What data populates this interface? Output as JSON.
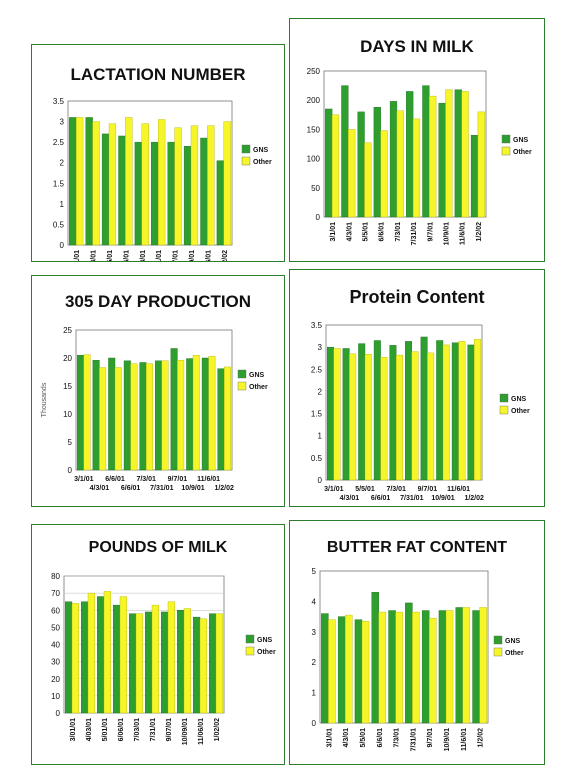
{
  "colors": {
    "gns": "#2e9e2e",
    "other": "#f5f52a",
    "gns_dark": "#1e6e1e",
    "frame": "#2e7d2e"
  },
  "chart_data": [
    {
      "id": "lactation",
      "type": "bar",
      "title": "LACTATION NUMBER",
      "categories": [
        "3/01/01",
        "4/03/01",
        "5/05/01",
        "6/06/01",
        "7/03/01",
        "7/31/01",
        "9/07/01",
        "10/09/01",
        "11/06/01",
        "1/02/02"
      ],
      "tick_labels": [
        "3/01/01",
        "4/03/01",
        "5/05/01",
        "6/06/01",
        "7/03/01",
        "7/31/01",
        "9/07/01",
        "10/09/01",
        "11/06/01",
        "1/02/02"
      ],
      "ylim": [
        0,
        3.5
      ],
      "yticks": [
        "0",
        "0.5",
        "1",
        "1.5",
        "2",
        "2.5",
        "3",
        "3.5"
      ],
      "ylabel": "",
      "series": [
        {
          "name": "GNS",
          "values": [
            3.1,
            3.1,
            2.7,
            2.65,
            2.5,
            2.5,
            2.5,
            2.4,
            2.6,
            2.05
          ]
        },
        {
          "name": "Other",
          "values": [
            3.1,
            3.0,
            2.95,
            3.1,
            2.95,
            3.05,
            2.85,
            2.9,
            2.9,
            3.0
          ]
        }
      ]
    },
    {
      "id": "days",
      "type": "bar",
      "title": "DAYS IN MILK",
      "categories": [
        "3/1/01",
        "4/3/01",
        "5/5/01",
        "6/6/01",
        "7/3/01",
        "7/31/01",
        "9/7/01",
        "10/9/01",
        "11/6/01",
        "1/2/02"
      ],
      "tick_labels": [
        "3/1/01",
        "4/3/01",
        "5/5/01",
        "6/6/01",
        "7/3/01",
        "7/31/01",
        "9/7/01",
        "10/9/01",
        "11/6/01",
        "1/2/02"
      ],
      "ylim": [
        0,
        250
      ],
      "yticks": [
        "0",
        "50",
        "100",
        "150",
        "200",
        "250"
      ],
      "ylabel": "",
      "series": [
        {
          "name": "GNS",
          "values": [
            185,
            225,
            180,
            188,
            198,
            215,
            225,
            195,
            218,
            140
          ]
        },
        {
          "name": "Other",
          "values": [
            175,
            150,
            127,
            148,
            182,
            168,
            207,
            218,
            215,
            180
          ]
        }
      ]
    },
    {
      "id": "production",
      "type": "bar",
      "title": "305 DAY PRODUCTION",
      "categories": [
        "3/1/01",
        "4/3/01",
        "6/6/01",
        "6/6/01",
        "7/3/01",
        "7/31/01",
        "9/7/01",
        "10/9/01",
        "11/6/01",
        "1/2/02"
      ],
      "tick_labels": [
        "3/1/01",
        "4/3/01",
        "6/6/01",
        "6/6/01",
        "7/3/01",
        "7/31/01",
        "9/7/01",
        "10/9/01",
        "11/6/01",
        "1/2/02"
      ],
      "ylim": [
        0,
        25
      ],
      "yticks": [
        "0",
        "5",
        "10",
        "15",
        "20",
        "25"
      ],
      "ylabel": "Thousands",
      "series": [
        {
          "name": "GNS",
          "values": [
            20.5,
            19.6,
            20.0,
            19.5,
            19.2,
            19.5,
            21.7,
            19.9,
            20.0,
            18.1
          ]
        },
        {
          "name": "Other",
          "values": [
            20.6,
            18.3,
            18.3,
            19.0,
            19.0,
            19.5,
            19.6,
            20.5,
            20.3,
            18.4
          ]
        }
      ]
    },
    {
      "id": "protein",
      "type": "bar",
      "title": "Protein Content",
      "categories": [
        "3/1/01",
        "4/3/01",
        "5/5/01",
        "6/6/01",
        "7/3/01",
        "7/31/01",
        "9/7/01",
        "10/9/01",
        "11/6/01",
        "1/2/02"
      ],
      "tick_labels": [
        "3/1/01",
        "4/3/01",
        "5/5/01",
        "6/6/01",
        "7/3/01",
        "7/31/01",
        "9/7/01",
        "10/9/01",
        "11/6/01",
        "1/2/02"
      ],
      "ylim": [
        0,
        3.5
      ],
      "yticks": [
        "0",
        "0.5",
        "1",
        "1.5",
        "2",
        "2.5",
        "3",
        "3.5"
      ],
      "ylabel": "",
      "series": [
        {
          "name": "GNS",
          "values": [
            3.0,
            2.97,
            3.08,
            3.15,
            3.04,
            3.13,
            3.23,
            3.15,
            3.1,
            3.05
          ]
        },
        {
          "name": "Other",
          "values": [
            2.97,
            2.85,
            2.84,
            2.77,
            2.82,
            2.9,
            2.87,
            3.05,
            3.13,
            3.18
          ]
        }
      ]
    },
    {
      "id": "pounds",
      "type": "bar",
      "title": "POUNDS OF MILK",
      "categories": [
        "3/01/01",
        "4/03/01",
        "5/01/01",
        "6/06/01",
        "7/03/01",
        "7/31/01",
        "9/07/01",
        "10/09/01",
        "11/06/01",
        "1/02/02"
      ],
      "tick_labels": [
        "3/01/01",
        "4/03/01",
        "5/01/01",
        "6/06/01",
        "7/03/01",
        "7/31/01",
        "9/07/01",
        "10/09/01",
        "11/06/01",
        "1/02/02"
      ],
      "ylim": [
        0,
        80
      ],
      "yticks": [
        "0",
        "10",
        "20",
        "30",
        "40",
        "50",
        "60",
        "70",
        "80"
      ],
      "ylabel": "",
      "series": [
        {
          "name": "GNS",
          "values": [
            65,
            65,
            68,
            63,
            58,
            59,
            59,
            60,
            56,
            58
          ]
        },
        {
          "name": "Other",
          "values": [
            64,
            70,
            71,
            68,
            58,
            63,
            65,
            61,
            55,
            58
          ]
        }
      ]
    },
    {
      "id": "butterfat",
      "type": "bar",
      "title": "BUTTER FAT CONTENT",
      "categories": [
        "3/1/01",
        "4/3/01",
        "5/5/01",
        "6/6/01",
        "7/3/01",
        "7/31/01",
        "9/7/01",
        "10/9/01",
        "11/6/01",
        "1/2/02"
      ],
      "tick_labels": [
        "3/1/01",
        "4/3/01",
        "5/5/01",
        "6/6/01",
        "7/3/01",
        "7/31/01",
        "9/7/01",
        "10/9/01",
        "11/6/01",
        "1/2/02"
      ],
      "ylim": [
        0,
        5
      ],
      "yticks": [
        "0",
        "1",
        "2",
        "3",
        "4",
        "5"
      ],
      "ylabel": "",
      "series": [
        {
          "name": "GNS",
          "values": [
            3.6,
            3.5,
            3.4,
            4.3,
            3.7,
            3.95,
            3.7,
            3.7,
            3.8,
            3.7
          ]
        },
        {
          "name": "Other",
          "values": [
            3.4,
            3.55,
            3.35,
            3.65,
            3.65,
            3.65,
            3.45,
            3.7,
            3.8,
            3.8
          ]
        }
      ]
    }
  ]
}
